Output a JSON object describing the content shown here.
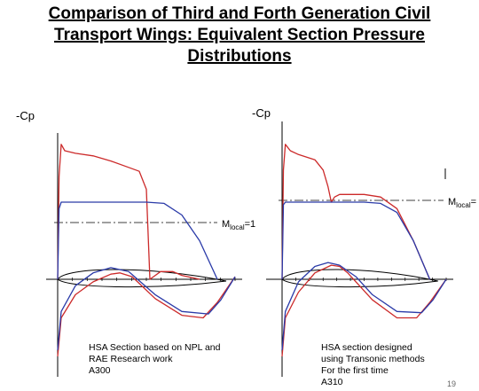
{
  "slide": {
    "title_lines": [
      "Comparison of Third and Forth Generation Civil",
      "Transport Wings: Equivalent  Section Pressure",
      "Distributions"
    ],
    "page_number": "19"
  },
  "colors": {
    "curve_a": "#cc2a2a",
    "curve_b": "#2a3aa8",
    "axis": "#000000"
  },
  "chart_data": [
    {
      "type": "line",
      "ylabel": "-Cp",
      "reference_line": {
        "label_main": "M",
        "label_sub": "local",
        "label_suffix": "=1"
      },
      "caption": [
        "HSA Section based on NPL and",
        "RAE  Research work",
        "A300"
      ],
      "series": [
        {
          "color": "#cc2a2a",
          "segments": [
            [
              [
                0,
                0
              ],
              [
                0.008,
                0.8
              ],
              [
                0.02,
                1.05
              ],
              [
                0.04,
                1.0
              ],
              [
                0.1,
                0.98
              ],
              [
                0.2,
                0.96
              ],
              [
                0.3,
                0.92
              ],
              [
                0.4,
                0.87
              ],
              [
                0.46,
                0.84
              ],
              [
                0.5,
                0.7
              ],
              [
                0.52,
                0.0
              ],
              [
                0.54,
                0.02
              ],
              [
                0.58,
                0.06
              ],
              [
                0.65,
                0.06
              ],
              [
                0.7,
                0.03
              ],
              [
                0.8,
                0.0
              ]
            ],
            [
              [
                0,
                -0.6
              ],
              [
                0.02,
                -0.3
              ],
              [
                0.1,
                -0.12
              ],
              [
                0.2,
                -0.02
              ],
              [
                0.3,
                0.04
              ],
              [
                0.35,
                0.05
              ],
              [
                0.42,
                0.02
              ],
              [
                0.55,
                -0.15
              ],
              [
                0.7,
                -0.28
              ],
              [
                0.82,
                -0.3
              ],
              [
                0.9,
                -0.18
              ],
              [
                1.0,
                0.02
              ]
            ]
          ]
        },
        {
          "color": "#2a3aa8",
          "segments": [
            [
              [
                0,
                0
              ],
              [
                0.008,
                0.55
              ],
              [
                0.02,
                0.6
              ],
              [
                0.05,
                0.6
              ],
              [
                0.15,
                0.6
              ],
              [
                0.3,
                0.6
              ],
              [
                0.5,
                0.6
              ],
              [
                0.6,
                0.59
              ],
              [
                0.7,
                0.5
              ],
              [
                0.8,
                0.3
              ],
              [
                0.9,
                0.0
              ]
            ],
            [
              [
                0,
                -0.55
              ],
              [
                0.02,
                -0.25
              ],
              [
                0.1,
                -0.05
              ],
              [
                0.2,
                0.05
              ],
              [
                0.3,
                0.09
              ],
              [
                0.4,
                0.06
              ],
              [
                0.55,
                -0.12
              ],
              [
                0.7,
                -0.25
              ],
              [
                0.85,
                -0.27
              ],
              [
                0.92,
                -0.16
              ],
              [
                1.0,
                0.02
              ]
            ]
          ]
        }
      ]
    },
    {
      "type": "line",
      "ylabel": "-Cp",
      "reference_line": {
        "label_main": "M",
        "label_sub": "local",
        "label_suffix": "="
      },
      "caption": [
        "HSA section designed",
        "using Transonic methods",
        "For the first time",
        "A310"
      ],
      "series": [
        {
          "color": "#cc2a2a",
          "segments": [
            [
              [
                0,
                0
              ],
              [
                0.008,
                0.85
              ],
              [
                0.02,
                1.05
              ],
              [
                0.05,
                1.0
              ],
              [
                0.1,
                0.97
              ],
              [
                0.2,
                0.93
              ],
              [
                0.25,
                0.85
              ],
              [
                0.28,
                0.72
              ],
              [
                0.3,
                0.6
              ],
              [
                0.32,
                0.64
              ],
              [
                0.35,
                0.66
              ],
              [
                0.5,
                0.66
              ],
              [
                0.6,
                0.64
              ],
              [
                0.7,
                0.55
              ],
              [
                0.8,
                0.3
              ],
              [
                0.9,
                0.0
              ]
            ],
            [
              [
                0,
                -0.6
              ],
              [
                0.02,
                -0.3
              ],
              [
                0.1,
                -0.1
              ],
              [
                0.2,
                0.05
              ],
              [
                0.3,
                0.11
              ],
              [
                0.35,
                0.1
              ],
              [
                0.4,
                0.05
              ],
              [
                0.55,
                -0.16
              ],
              [
                0.7,
                -0.3
              ],
              [
                0.82,
                -0.3
              ],
              [
                0.9,
                -0.18
              ],
              [
                1.0,
                0.0
              ]
            ]
          ]
        },
        {
          "color": "#2a3aa8",
          "segments": [
            [
              [
                0,
                0
              ],
              [
                0.008,
                0.58
              ],
              [
                0.02,
                0.6
              ],
              [
                0.1,
                0.6
              ],
              [
                0.2,
                0.6
              ],
              [
                0.3,
                0.6
              ],
              [
                0.5,
                0.6
              ],
              [
                0.6,
                0.59
              ],
              [
                0.7,
                0.52
              ],
              [
                0.8,
                0.3
              ],
              [
                0.9,
                0.0
              ]
            ],
            [
              [
                0,
                -0.55
              ],
              [
                0.02,
                -0.25
              ],
              [
                0.1,
                -0.02
              ],
              [
                0.2,
                0.1
              ],
              [
                0.28,
                0.13
              ],
              [
                0.35,
                0.11
              ],
              [
                0.45,
                0.02
              ],
              [
                0.55,
                -0.12
              ],
              [
                0.7,
                -0.25
              ],
              [
                0.85,
                -0.26
              ],
              [
                0.92,
                -0.16
              ],
              [
                1.0,
                0.0
              ]
            ]
          ]
        }
      ]
    }
  ]
}
